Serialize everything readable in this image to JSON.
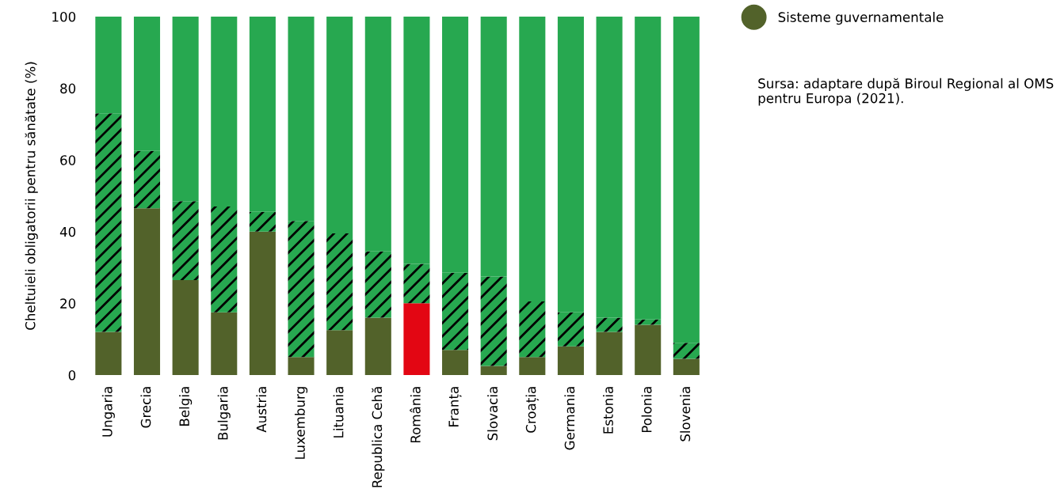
{
  "chart_data": {
    "type": "bar",
    "stacked": true,
    "ylabel": "Cheltuieli obligatorii pentru sănătate (%)",
    "categories": [
      "Ungaria",
      "Grecia",
      "Belgia",
      "Bulgaria",
      "Austria",
      "Luxemburg",
      "Lituania",
      "Republica Cehă",
      "România",
      "Franța",
      "Slovacia",
      "Croația",
      "Germania",
      "Estonia",
      "Polonia",
      "Slovenia"
    ],
    "series": [
      {
        "name": "Sisteme guvernamentale",
        "color": "#52622a",
        "colors": [
          "#52622a",
          "#52622a",
          "#52622a",
          "#52622a",
          "#52622a",
          "#52622a",
          "#52622a",
          "#52622a",
          "#e30613",
          "#52622a",
          "#52622a",
          "#52622a",
          "#52622a",
          "#52622a",
          "#52622a",
          "#52622a"
        ],
        "values": [
          12,
          46.5,
          26.5,
          17.5,
          40,
          5,
          12.5,
          16,
          20,
          7,
          2.5,
          5,
          8,
          12,
          14,
          4.5
        ]
      },
      {
        "color": "#27a850",
        "values": [
          61,
          16,
          22,
          29.5,
          5.5,
          38,
          27,
          18.5,
          11,
          21.5,
          25,
          15.5,
          9.5,
          4,
          1.5,
          4.5
        ]
      },
      {
        "color": "#27a850",
        "values": [
          27,
          37.5,
          51.5,
          53,
          54.5,
          57,
          60.5,
          65.5,
          69,
          71.5,
          72.5,
          79.5,
          82.5,
          84,
          84.5,
          91
        ]
      }
    ],
    "ylim": [
      0,
      100
    ],
    "yticks": [
      0,
      20,
      40,
      60,
      80,
      100
    ],
    "grid": false,
    "legend": "top right",
    "annotations": [
      "Sursa: adaptare după Biroul Regional al OMS pentru Europa (2021)."
    ]
  }
}
